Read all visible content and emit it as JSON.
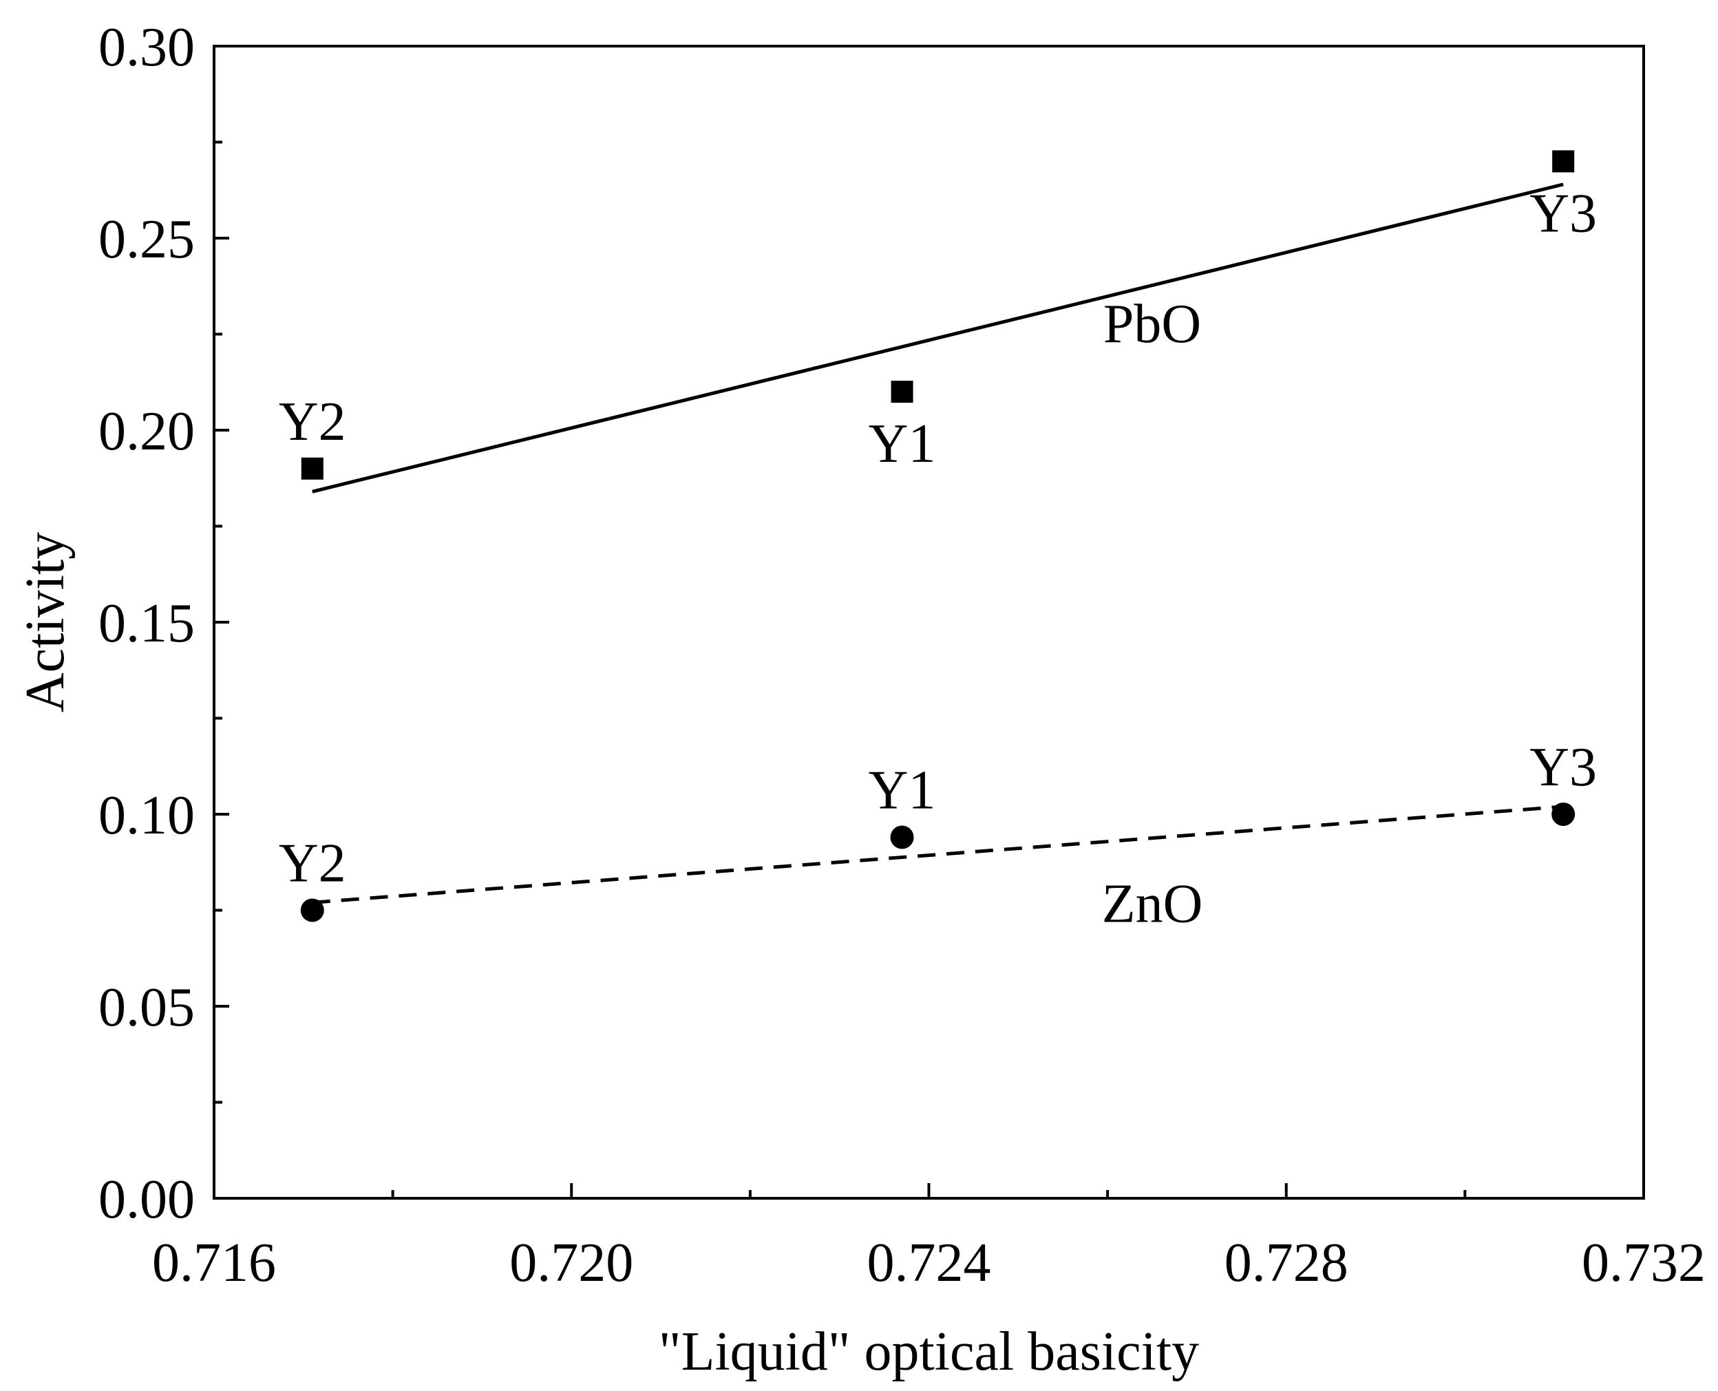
{
  "chart_data": {
    "type": "scatter",
    "title": "",
    "xlabel": "\"Liquid\" optical basicity",
    "ylabel": "Activity",
    "xlim": [
      0.716,
      0.732
    ],
    "ylim": [
      0.0,
      0.3
    ],
    "x_ticks": [
      "0.716",
      "0.720",
      "0.724",
      "0.728",
      "0.732"
    ],
    "y_ticks": [
      "0.00",
      "0.05",
      "0.10",
      "0.15",
      "0.20",
      "0.25",
      "0.30"
    ],
    "x_tick_values": [
      0.716,
      0.72,
      0.724,
      0.728,
      0.732
    ],
    "y_tick_values": [
      0.0,
      0.05,
      0.1,
      0.15,
      0.2,
      0.25,
      0.3
    ],
    "x_minor_tick_values": [
      0.718,
      0.722,
      0.726,
      0.73
    ],
    "y_minor_tick_values": [
      0.025,
      0.075,
      0.125,
      0.175,
      0.225,
      0.275
    ],
    "grid": false,
    "series": [
      {
        "name": "PbO",
        "marker": "square",
        "fit_line": "solid",
        "label_text": "PbO",
        "points": [
          {
            "label": "Y2",
            "x": 0.7171,
            "y": 0.19,
            "label_pos": "above"
          },
          {
            "label": "Y1",
            "x": 0.7237,
            "y": 0.21,
            "label_pos": "below"
          },
          {
            "label": "Y3",
            "x": 0.7311,
            "y": 0.27,
            "label_pos": "below"
          }
        ],
        "fit": {
          "x": [
            0.7171,
            0.7311
          ],
          "y": [
            0.184,
            0.264
          ]
        },
        "label_anchor": {
          "x": 0.7265,
          "y": 0.228
        }
      },
      {
        "name": "ZnO",
        "marker": "circle",
        "fit_line": "dashed",
        "label_text": "ZnO",
        "points": [
          {
            "label": "Y2",
            "x": 0.7171,
            "y": 0.075,
            "label_pos": "above"
          },
          {
            "label": "Y1",
            "x": 0.7237,
            "y": 0.094,
            "label_pos": "above"
          },
          {
            "label": "Y3",
            "x": 0.7311,
            "y": 0.1,
            "label_pos": "above"
          }
        ],
        "fit": {
          "x": [
            0.7171,
            0.7311
          ],
          "y": [
            0.077,
            0.102
          ]
        },
        "label_anchor": {
          "x": 0.7265,
          "y": 0.077
        }
      }
    ]
  },
  "colors": {
    "ink": "#000000",
    "background": "#ffffff"
  }
}
